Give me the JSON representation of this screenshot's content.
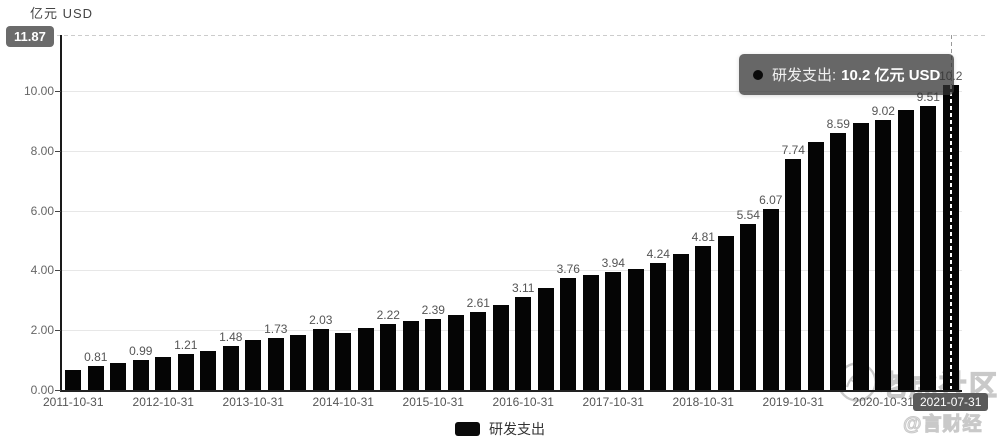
{
  "header": {
    "unit_label": "亿元 USD",
    "ymax_badge": "11.87"
  },
  "tooltip": {
    "series_label": "研发支出:",
    "value_text": "10.2 亿元 USD"
  },
  "legend": {
    "series_label": "研发支出"
  },
  "selected_date_badge": "2021-07-31",
  "watermark": {
    "brand": "老虎社区",
    "handle": "@言财经"
  },
  "colors": {
    "bar": "#050505",
    "badge_bg": "#6b6b6b",
    "tooltip_bg": "rgba(50,50,50,0.74)",
    "grid": "#e7e7e7",
    "label_gray": "#555"
  },
  "chart_data": {
    "type": "bar",
    "title": "研发支出 (亿元 USD)",
    "series_name": "研发支出",
    "ylabel": "亿元 USD",
    "ylim": [
      0,
      11.87
    ],
    "y_tick_values": [
      0,
      2,
      4,
      6,
      8,
      10
    ],
    "y_tick_labels": [
      "0.00",
      "2.00",
      "4.00",
      "6.00",
      "8.00",
      "10.00"
    ],
    "grid": true,
    "legend_position": "bottom",
    "categories": [
      "2011-10-31",
      "2012-01-31",
      "2012-04-30",
      "2012-07-31",
      "2012-10-31",
      "2013-01-31",
      "2013-04-30",
      "2013-07-31",
      "2013-10-31",
      "2014-01-31",
      "2014-04-30",
      "2014-07-31",
      "2014-10-31",
      "2015-01-31",
      "2015-04-30",
      "2015-07-31",
      "2015-10-31",
      "2016-01-31",
      "2016-04-30",
      "2016-07-31",
      "2016-10-31",
      "2017-01-31",
      "2017-04-30",
      "2017-07-31",
      "2017-10-31",
      "2018-01-31",
      "2018-04-30",
      "2018-07-31",
      "2018-10-31",
      "2019-01-31",
      "2019-04-30",
      "2019-07-31",
      "2019-10-31",
      "2020-01-31",
      "2020-04-30",
      "2020-07-31",
      "2020-10-31",
      "2021-01-31",
      "2021-04-30",
      "2021-07-31"
    ],
    "values": [
      0.68,
      0.81,
      0.9,
      0.99,
      1.1,
      1.21,
      1.3,
      1.48,
      1.66,
      1.73,
      1.85,
      2.03,
      1.9,
      2.08,
      2.22,
      2.3,
      2.39,
      2.5,
      2.61,
      2.85,
      3.11,
      3.4,
      3.76,
      3.84,
      3.94,
      4.05,
      4.24,
      4.55,
      4.81,
      5.15,
      5.54,
      6.07,
      7.74,
      8.28,
      8.59,
      8.92,
      9.02,
      9.35,
      9.51,
      10.2
    ],
    "bar_labels": [
      "",
      "0.81",
      "",
      "0.99",
      "",
      "1.21",
      "",
      "1.48",
      "",
      "1.73",
      "",
      "2.03",
      "",
      "",
      "2.22",
      "",
      "2.39",
      "",
      "2.61",
      "",
      "3.11",
      "",
      "3.76",
      "",
      "3.94",
      "",
      "4.24",
      "",
      "4.81",
      "",
      "5.54",
      "6.07",
      "7.74",
      "",
      "8.59",
      "",
      "9.02",
      "",
      "9.51",
      "10.2"
    ],
    "x_tick_indices": [
      0,
      4,
      8,
      12,
      16,
      20,
      24,
      28,
      32,
      36
    ],
    "x_tick_labels": [
      "2011-10-31",
      "2012-10-31",
      "2013-10-31",
      "2014-10-31",
      "2015-10-31",
      "2016-10-31",
      "2017-10-31",
      "2018-10-31",
      "2019-10-31",
      "2020-10-31"
    ],
    "highlighted_index": 39,
    "highlighted_value_text": "10.2 亿元 USD"
  }
}
